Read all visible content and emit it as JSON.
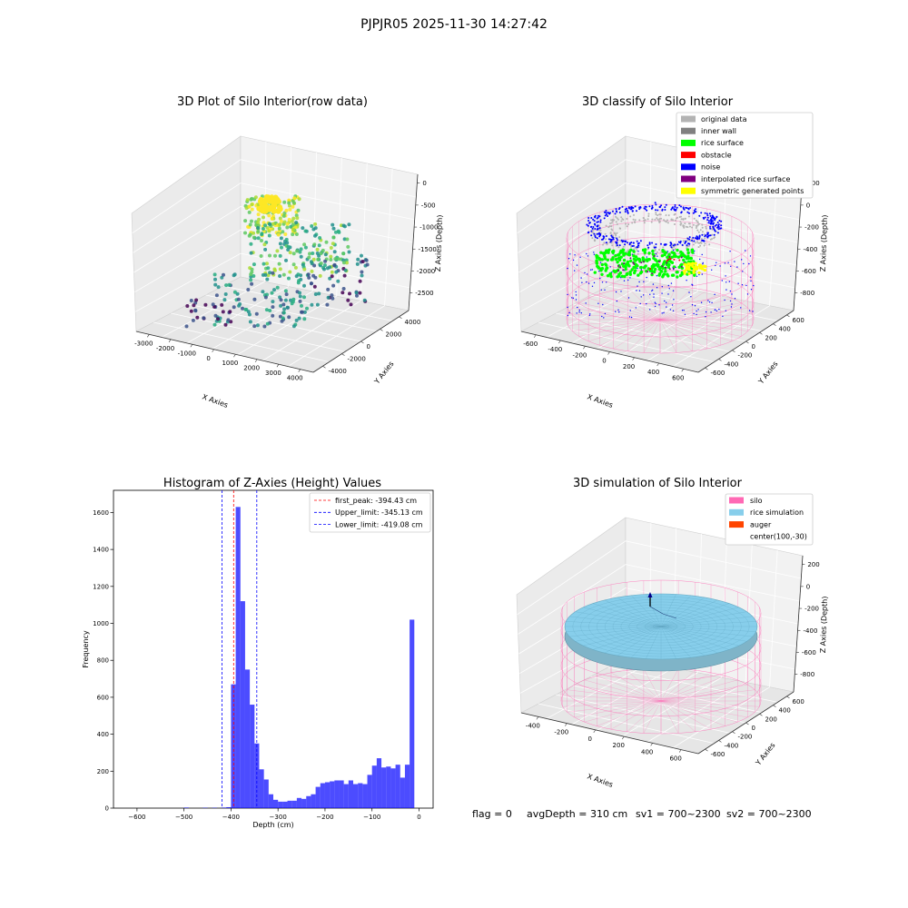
{
  "suptitle": "PJPJR05 2025-11-30 14:27:42",
  "footer": {
    "flag": "flag = 0",
    "avg": "avgDepth = 310 cm",
    "sv1": "sv1 = 700~2300",
    "sv2": "sv2 = 700~2300"
  },
  "colors": {
    "original": "#b3b3b3",
    "inner_wall": "#808080",
    "rice": "#00ff00",
    "obstacle": "#ff0000",
    "noise": "#0000ff",
    "interp": "#800080",
    "symmetric": "#ffff00",
    "silo": "#ff69b4",
    "rice_sim": "#87ceeb",
    "auger": "#ff4500",
    "hist": "#0000ff"
  },
  "chart_data": [
    {
      "type": "scatter",
      "title": "3D Plot of Silo Interior(row data)",
      "xlabel": "X Axies",
      "ylabel": "Y Axies",
      "zlabel": "Z Axies (Depth)",
      "x_ticks": [
        "-3000",
        "-2000",
        "-1000",
        "0",
        "1000",
        "2000",
        "3000",
        "4000"
      ],
      "y_ticks": [
        "4000",
        "2000",
        "0",
        "-2000",
        "-4000"
      ],
      "z_ticks": [
        "0",
        "-500",
        "-1000",
        "-1500",
        "-2000",
        "-2500"
      ],
      "xlim": [
        -3500,
        4500
      ],
      "ylim": [
        -4500,
        4500
      ],
      "zlim": [
        -2800,
        200
      ],
      "colormap": "viridis"
    },
    {
      "type": "scatter",
      "title": "3D classify of Silo Interior",
      "xlabel": "X Axies",
      "ylabel": "Y Axies",
      "zlabel": "Z Axies (Depth)",
      "x_ticks": [
        "-600",
        "-400",
        "-200",
        "0",
        "200",
        "400",
        "600"
      ],
      "y_ticks": [
        "600",
        "400",
        "200",
        "0",
        "-200",
        "-400",
        "-600"
      ],
      "z_ticks": [
        "200",
        "0",
        "-200",
        "-400",
        "-600",
        "-800"
      ],
      "legend": [
        "original data",
        "inner wall",
        "rice surface",
        "obstacle",
        "noise",
        "interpolated rice surface",
        "symmetric generated points"
      ],
      "legend_loc": "upper right"
    },
    {
      "type": "bar",
      "title": "Histogram of Z-Axies (Height) Values",
      "xlabel": "Depth (cm)",
      "ylabel": "Frequency",
      "xlim": [
        -650,
        30
      ],
      "ylim": [
        0,
        1720
      ],
      "x_ticks": [
        -600,
        -500,
        -400,
        -300,
        -200,
        -100,
        0
      ],
      "y_ticks": [
        0,
        200,
        400,
        600,
        800,
        1000,
        1200,
        1400,
        1600
      ],
      "bin_width": 10,
      "bin_starts": [
        -500,
        -490,
        -480,
        -470,
        -460,
        -450,
        -440,
        -430,
        -420,
        -410,
        -400,
        -390,
        -380,
        -370,
        -360,
        -350,
        -340,
        -330,
        -320,
        -310,
        -300,
        -290,
        -280,
        -270,
        -260,
        -250,
        -240,
        -230,
        -220,
        -210,
        -200,
        -190,
        -180,
        -170,
        -160,
        -150,
        -140,
        -130,
        -120,
        -110,
        -100,
        -90,
        -80,
        -70,
        -60,
        -50,
        -40,
        -30,
        -20,
        -10
      ],
      "values": [
        3,
        0,
        0,
        0,
        2,
        0,
        2,
        0,
        3,
        5,
        670,
        1630,
        1120,
        750,
        560,
        350,
        210,
        155,
        75,
        45,
        35,
        35,
        40,
        40,
        55,
        50,
        65,
        75,
        115,
        135,
        140,
        145,
        150,
        150,
        130,
        150,
        130,
        135,
        130,
        180,
        230,
        270,
        220,
        225,
        215,
        235,
        165,
        235,
        1020,
        0
      ],
      "lines": [
        {
          "label": "first_peak: -394.43 cm",
          "x": -394.43,
          "color": "#ff0000"
        },
        {
          "label": "Upper_limit: -345.13 cm",
          "x": -345.13,
          "color": "#0000ff"
        },
        {
          "label": "Lower_limit: -419.08 cm",
          "x": -419.08,
          "color": "#0000ff"
        }
      ],
      "legend_loc": "upper right"
    },
    {
      "type": "scatter",
      "title": "3D simulation of Silo Interior",
      "xlabel": "X Axies",
      "ylabel": "Y Axies",
      "zlabel": "Z Axies (Depth)",
      "x_ticks": [
        "-400",
        "-200",
        "0",
        "200",
        "400",
        "600"
      ],
      "y_ticks": [
        "600",
        "400",
        "200",
        "0",
        "-200",
        "-400",
        "-600"
      ],
      "z_ticks": [
        "200",
        "0",
        "-200",
        "-400",
        "-600",
        "-800"
      ],
      "legend": [
        "silo",
        "rice simulation",
        "auger",
        "center(100,-30)"
      ],
      "legend_loc": "upper right"
    }
  ]
}
